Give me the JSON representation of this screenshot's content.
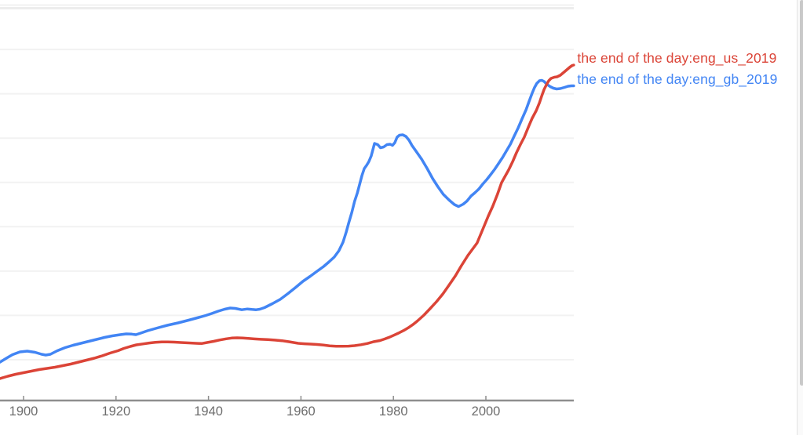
{
  "chart_data": {
    "type": "line",
    "title": "",
    "xlabel": "",
    "ylabel": "",
    "x_axis": {
      "tick_labels": [
        "1900",
        "1920",
        "1940",
        "1960",
        "1980",
        "2000"
      ],
      "tick_years": [
        1900,
        1920,
        1940,
        1960,
        1980,
        2000
      ],
      "visible_range": [
        1895,
        2019
      ]
    },
    "y_axis": {
      "tick_labels": [],
      "note": "y-axis value labels are cropped out of view; 9 faint horizontal gridlines at equal intervals",
      "gridline_units": [
        1,
        2,
        3,
        4,
        5,
        6,
        7,
        8,
        9
      ],
      "unit": "relative frequency (grid-interval units above x-axis)"
    },
    "grid": true,
    "legend_position": "right-end-of-line",
    "series": [
      {
        "label": "the end of the day:eng_us_2019",
        "color": "#db4437",
        "points": [
          [
            1894.9,
            0.513
          ],
          [
            1896.6,
            0.566
          ],
          [
            1898.3,
            0.611
          ],
          [
            1900,
            0.646
          ],
          [
            1901.7,
            0.681
          ],
          [
            1903.4,
            0.717
          ],
          [
            1905.1,
            0.743
          ],
          [
            1906.8,
            0.77
          ],
          [
            1908.5,
            0.805
          ],
          [
            1910.2,
            0.841
          ],
          [
            1911.9,
            0.885
          ],
          [
            1913.6,
            0.929
          ],
          [
            1915.3,
            0.973
          ],
          [
            1917,
            1.027
          ],
          [
            1918.7,
            1.088
          ],
          [
            1920.4,
            1.142
          ],
          [
            1921.7,
            1.195
          ],
          [
            1923.1,
            1.239
          ],
          [
            1924.4,
            1.274
          ],
          [
            1925.8,
            1.295
          ],
          [
            1927.2,
            1.317
          ],
          [
            1928.5,
            1.331
          ],
          [
            1929.9,
            1.34
          ],
          [
            1931.2,
            1.342
          ],
          [
            1932.6,
            1.336
          ],
          [
            1934,
            1.327
          ],
          [
            1935.7,
            1.319
          ],
          [
            1937.3,
            1.31
          ],
          [
            1938.5,
            1.304
          ],
          [
            1939.7,
            1.327
          ],
          [
            1941.1,
            1.354
          ],
          [
            1942.4,
            1.384
          ],
          [
            1943.8,
            1.411
          ],
          [
            1945,
            1.428
          ],
          [
            1946.2,
            1.434
          ],
          [
            1947.4,
            1.428
          ],
          [
            1948.6,
            1.419
          ],
          [
            1949.9,
            1.409
          ],
          [
            1951.3,
            1.4
          ],
          [
            1952.8,
            1.393
          ],
          [
            1954.3,
            1.382
          ],
          [
            1955.9,
            1.368
          ],
          [
            1957.4,
            1.345
          ],
          [
            1958.4,
            1.327
          ],
          [
            1959.4,
            1.31
          ],
          [
            1960.8,
            1.299
          ],
          [
            1962.1,
            1.292
          ],
          [
            1963.5,
            1.283
          ],
          [
            1964.9,
            1.269
          ],
          [
            1966.2,
            1.253
          ],
          [
            1967.6,
            1.244
          ],
          [
            1968.9,
            1.242
          ],
          [
            1970.3,
            1.246
          ],
          [
            1971.6,
            1.257
          ],
          [
            1973,
            1.278
          ],
          [
            1974.4,
            1.306
          ],
          [
            1975.7,
            1.345
          ],
          [
            1977.1,
            1.372
          ],
          [
            1978.1,
            1.407
          ],
          [
            1979.1,
            1.446
          ],
          [
            1980.1,
            1.492
          ],
          [
            1981.1,
            1.54
          ],
          [
            1982.2,
            1.598
          ],
          [
            1983.2,
            1.658
          ],
          [
            1984.2,
            1.731
          ],
          [
            1985.2,
            1.814
          ],
          [
            1986.6,
            1.947
          ],
          [
            1987.9,
            2.088
          ],
          [
            1989.3,
            2.248
          ],
          [
            1990.7,
            2.425
          ],
          [
            1992,
            2.619
          ],
          [
            1993.4,
            2.832
          ],
          [
            1994.7,
            3.062
          ],
          [
            1996.1,
            3.292
          ],
          [
            1997.1,
            3.434
          ],
          [
            1998.1,
            3.575
          ],
          [
            1999.5,
            3.929
          ],
          [
            2000.5,
            4.177
          ],
          [
            2001.5,
            4.407
          ],
          [
            2002.5,
            4.673
          ],
          [
            2003.4,
            4.938
          ],
          [
            2004.2,
            5.089
          ],
          [
            2004.9,
            5.221
          ],
          [
            2005.8,
            5.416
          ],
          [
            2006.6,
            5.611
          ],
          [
            2007.5,
            5.805
          ],
          [
            2008.3,
            5.965
          ],
          [
            2009.2,
            6.195
          ],
          [
            2010,
            6.389
          ],
          [
            2010.9,
            6.566
          ],
          [
            2011.6,
            6.743
          ],
          [
            2012.1,
            6.903
          ],
          [
            2012.6,
            7.044
          ],
          [
            2013.1,
            7.15
          ],
          [
            2013.6,
            7.239
          ],
          [
            2014.1,
            7.292
          ],
          [
            2014.8,
            7.319
          ],
          [
            2015.4,
            7.327
          ],
          [
            2016.1,
            7.363
          ],
          [
            2016.8,
            7.425
          ],
          [
            2017.5,
            7.487
          ],
          [
            2018.2,
            7.549
          ],
          [
            2018.7,
            7.584
          ],
          [
            2019,
            7.593
          ]
        ]
      },
      {
        "label": "the end of the day:eng_gb_2019",
        "color": "#4285f4",
        "points": [
          [
            1894.9,
            0.885
          ],
          [
            1896.3,
            0.973
          ],
          [
            1897.6,
            1.053
          ],
          [
            1899.2,
            1.115
          ],
          [
            1900.8,
            1.133
          ],
          [
            1902.5,
            1.106
          ],
          [
            1903.9,
            1.062
          ],
          [
            1904.8,
            1.044
          ],
          [
            1905.8,
            1.062
          ],
          [
            1907.3,
            1.142
          ],
          [
            1909,
            1.212
          ],
          [
            1910.7,
            1.265
          ],
          [
            1912.4,
            1.31
          ],
          [
            1914.1,
            1.354
          ],
          [
            1915.8,
            1.398
          ],
          [
            1917.5,
            1.442
          ],
          [
            1919.2,
            1.478
          ],
          [
            1920.9,
            1.504
          ],
          [
            1922.2,
            1.522
          ],
          [
            1923.4,
            1.517
          ],
          [
            1924.3,
            1.504
          ],
          [
            1925.1,
            1.531
          ],
          [
            1926.8,
            1.593
          ],
          [
            1928.9,
            1.655
          ],
          [
            1931.1,
            1.717
          ],
          [
            1933.4,
            1.77
          ],
          [
            1935.7,
            1.832
          ],
          [
            1937.9,
            1.894
          ],
          [
            1939.4,
            1.938
          ],
          [
            1940.7,
            1.982
          ],
          [
            1942.1,
            2.035
          ],
          [
            1943.5,
            2.08
          ],
          [
            1944.7,
            2.106
          ],
          [
            1945.8,
            2.097
          ],
          [
            1947.2,
            2.067
          ],
          [
            1948.4,
            2.085
          ],
          [
            1949.4,
            2.074
          ],
          [
            1950.3,
            2.067
          ],
          [
            1951.1,
            2.08
          ],
          [
            1952.1,
            2.115
          ],
          [
            1953.8,
            2.204
          ],
          [
            1955.5,
            2.301
          ],
          [
            1957.2,
            2.434
          ],
          [
            1958.9,
            2.575
          ],
          [
            1960.4,
            2.708
          ],
          [
            1962,
            2.823
          ],
          [
            1963.5,
            2.938
          ],
          [
            1964.9,
            3.044
          ],
          [
            1966,
            3.142
          ],
          [
            1967.2,
            3.257
          ],
          [
            1968.2,
            3.398
          ],
          [
            1969.1,
            3.593
          ],
          [
            1969.8,
            3.823
          ],
          [
            1970.3,
            4.018
          ],
          [
            1971,
            4.265
          ],
          [
            1971.6,
            4.513
          ],
          [
            1972.2,
            4.708
          ],
          [
            1972.7,
            4.903
          ],
          [
            1973.2,
            5.097
          ],
          [
            1973.7,
            5.257
          ],
          [
            1974.2,
            5.327
          ],
          [
            1974.7,
            5.416
          ],
          [
            1975.2,
            5.54
          ],
          [
            1975.6,
            5.699
          ],
          [
            1975.9,
            5.823
          ],
          [
            1976.6,
            5.796
          ],
          [
            1977.2,
            5.726
          ],
          [
            1977.9,
            5.743
          ],
          [
            1978.6,
            5.796
          ],
          [
            1979.3,
            5.805
          ],
          [
            1979.8,
            5.779
          ],
          [
            1980.3,
            5.841
          ],
          [
            1980.8,
            5.965
          ],
          [
            1981.3,
            6.009
          ],
          [
            1982,
            6.018
          ],
          [
            1982.7,
            5.982
          ],
          [
            1983.4,
            5.894
          ],
          [
            1984,
            5.779
          ],
          [
            1984.9,
            5.646
          ],
          [
            1986.1,
            5.469
          ],
          [
            1987.3,
            5.257
          ],
          [
            1988.5,
            5.027
          ],
          [
            1989.6,
            4.85
          ],
          [
            1990.8,
            4.673
          ],
          [
            1992,
            4.549
          ],
          [
            1993.2,
            4.442
          ],
          [
            1994.1,
            4.398
          ],
          [
            1995.1,
            4.451
          ],
          [
            1995.9,
            4.522
          ],
          [
            1996.8,
            4.637
          ],
          [
            1997.6,
            4.708
          ],
          [
            1998.5,
            4.796
          ],
          [
            1999.3,
            4.903
          ],
          [
            2000.2,
            5.009
          ],
          [
            2001,
            5.115
          ],
          [
            2001.9,
            5.239
          ],
          [
            2002.7,
            5.363
          ],
          [
            2003.6,
            5.504
          ],
          [
            2004.4,
            5.646
          ],
          [
            2005.3,
            5.805
          ],
          [
            2006.1,
            5.982
          ],
          [
            2007,
            6.177
          ],
          [
            2007.8,
            6.372
          ],
          [
            2008.7,
            6.584
          ],
          [
            2009.3,
            6.761
          ],
          [
            2010,
            6.956
          ],
          [
            2010.5,
            7.08
          ],
          [
            2011,
            7.177
          ],
          [
            2011.6,
            7.239
          ],
          [
            2012.1,
            7.248
          ],
          [
            2012.6,
            7.221
          ],
          [
            2013.2,
            7.159
          ],
          [
            2013.9,
            7.106
          ],
          [
            2014.6,
            7.071
          ],
          [
            2015.3,
            7.053
          ],
          [
            2016.1,
            7.062
          ],
          [
            2017,
            7.088
          ],
          [
            2017.8,
            7.115
          ],
          [
            2018.5,
            7.124
          ],
          [
            2019,
            7.124
          ]
        ]
      }
    ]
  },
  "colors": {
    "axis_line": "#8e8e8e",
    "tick_label": "#6d6d6d",
    "gridline": "#f2f2f2",
    "plot_top_border": "#ededed",
    "scroll_track": "#fafafa",
    "scroll_thumb": "#c9c9c9"
  }
}
